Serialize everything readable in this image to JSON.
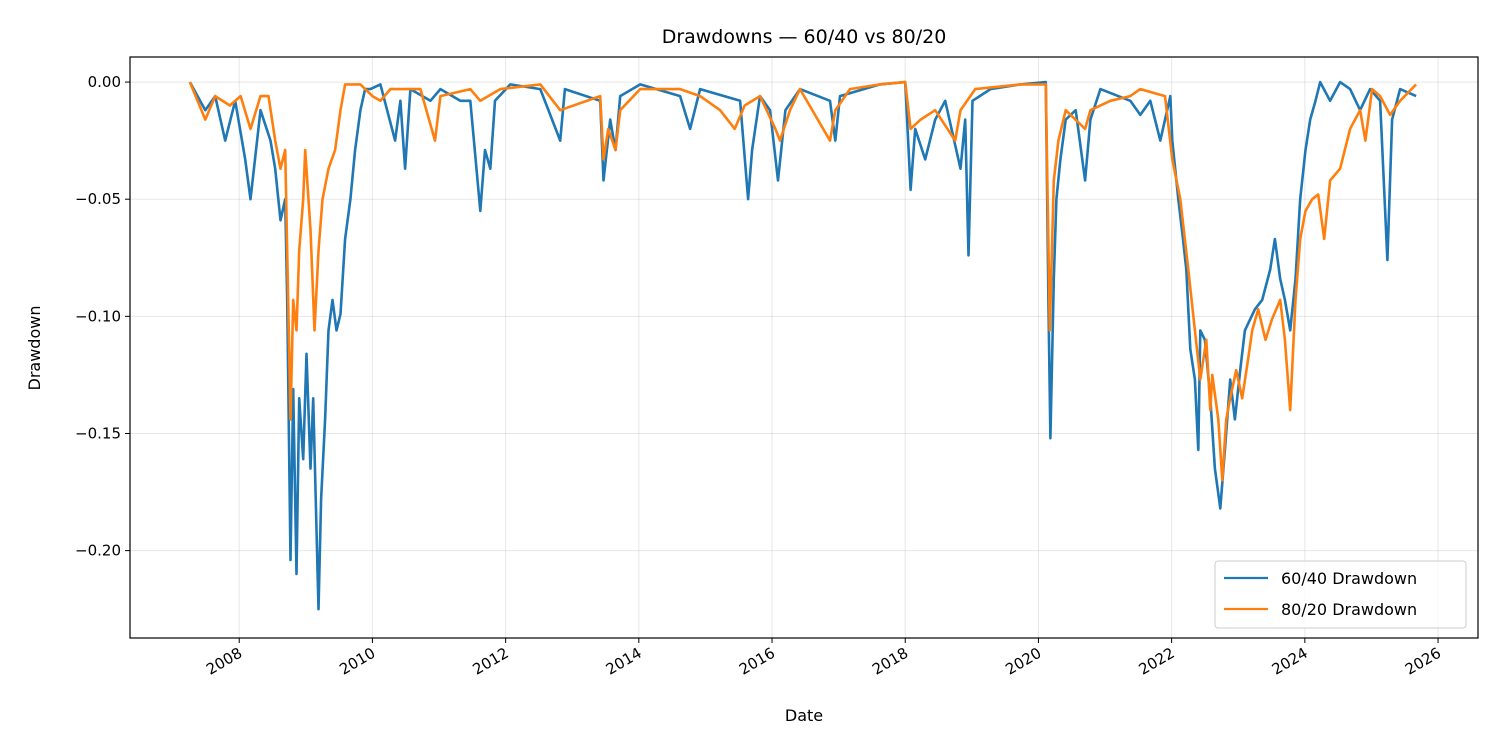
{
  "chart_data": {
    "type": "line",
    "title": "Drawdowns — 60/40 vs 80/20",
    "xlabel": "Date",
    "ylabel": "Drawdown",
    "xlim": [
      2006.36,
      2026.6
    ],
    "ylim": [
      -0.2373,
      0.0107
    ],
    "x_ticks": [
      2008,
      2010,
      2012,
      2014,
      2016,
      2018,
      2020,
      2022,
      2024,
      2026
    ],
    "x_tick_labels": [
      "2008",
      "2010",
      "2012",
      "2014",
      "2016",
      "2018",
      "2020",
      "2022",
      "2024",
      "2026"
    ],
    "y_ticks": [
      0,
      -0.05,
      -0.1,
      -0.15,
      -0.2
    ],
    "y_tick_labels": [
      "0.00",
      "−0.05",
      "−0.10",
      "−0.15",
      "−0.20"
    ],
    "grid": true,
    "legend_position": "lower-right",
    "series": [
      {
        "name": "60/40 Drawdown",
        "color": "#1f77b4",
        "points": [
          [
            2007.26,
            0
          ],
          [
            2007.49,
            -0.012
          ],
          [
            2007.64,
            -0.006
          ],
          [
            2007.79,
            -0.025
          ],
          [
            2007.94,
            -0.008
          ],
          [
            2008.09,
            -0.033
          ],
          [
            2008.17,
            -0.05
          ],
          [
            2008.32,
            -0.012
          ],
          [
            2008.47,
            -0.025
          ],
          [
            2008.54,
            -0.037
          ],
          [
            2008.62,
            -0.059
          ],
          [
            2008.69,
            -0.05
          ],
          [
            2008.72,
            -0.093
          ],
          [
            2008.77,
            -0.204
          ],
          [
            2008.81,
            -0.131
          ],
          [
            2008.86,
            -0.21
          ],
          [
            2008.9,
            -0.135
          ],
          [
            2008.96,
            -0.161
          ],
          [
            2009.01,
            -0.116
          ],
          [
            2009.07,
            -0.165
          ],
          [
            2009.11,
            -0.135
          ],
          [
            2009.16,
            -0.191
          ],
          [
            2009.19,
            -0.225
          ],
          [
            2009.23,
            -0.178
          ],
          [
            2009.29,
            -0.144
          ],
          [
            2009.34,
            -0.106
          ],
          [
            2009.4,
            -0.093
          ],
          [
            2009.46,
            -0.106
          ],
          [
            2009.52,
            -0.099
          ],
          [
            2009.59,
            -0.067
          ],
          [
            2009.67,
            -0.05
          ],
          [
            2009.74,
            -0.029
          ],
          [
            2009.82,
            -0.012
          ],
          [
            2009.89,
            -0.003
          ],
          [
            2009.97,
            -0.003
          ],
          [
            2010.12,
            -0.001
          ],
          [
            2010.34,
            -0.025
          ],
          [
            2010.42,
            -0.008
          ],
          [
            2010.49,
            -0.037
          ],
          [
            2010.57,
            -0.003
          ],
          [
            2010.87,
            -0.008
          ],
          [
            2011.02,
            -0.003
          ],
          [
            2011.32,
            -0.008
          ],
          [
            2011.47,
            -0.008
          ],
          [
            2011.62,
            -0.055
          ],
          [
            2011.69,
            -0.029
          ],
          [
            2011.77,
            -0.037
          ],
          [
            2011.84,
            -0.008
          ],
          [
            2012.07,
            -0.001
          ],
          [
            2012.52,
            -0.003
          ],
          [
            2012.82,
            -0.025
          ],
          [
            2012.89,
            -0.003
          ],
          [
            2013.42,
            -0.008
          ],
          [
            2013.47,
            -0.042
          ],
          [
            2013.57,
            -0.016
          ],
          [
            2013.65,
            -0.029
          ],
          [
            2013.72,
            -0.006
          ],
          [
            2014.02,
            -0.001
          ],
          [
            2014.62,
            -0.006
          ],
          [
            2014.77,
            -0.02
          ],
          [
            2014.92,
            -0.003
          ],
          [
            2015.52,
            -0.008
          ],
          [
            2015.64,
            -0.05
          ],
          [
            2015.7,
            -0.029
          ],
          [
            2015.82,
            -0.006
          ],
          [
            2015.97,
            -0.012
          ],
          [
            2016.09,
            -0.042
          ],
          [
            2016.2,
            -0.012
          ],
          [
            2016.42,
            -0.003
          ],
          [
            2016.87,
            -0.008
          ],
          [
            2016.95,
            -0.025
          ],
          [
            2017.02,
            -0.006
          ],
          [
            2017.62,
            -0.001
          ],
          [
            2018.0,
            0
          ],
          [
            2018.08,
            -0.046
          ],
          [
            2018.15,
            -0.02
          ],
          [
            2018.3,
            -0.033
          ],
          [
            2018.45,
            -0.016
          ],
          [
            2018.6,
            -0.008
          ],
          [
            2018.83,
            -0.037
          ],
          [
            2018.9,
            -0.016
          ],
          [
            2018.95,
            -0.074
          ],
          [
            2019.01,
            -0.008
          ],
          [
            2019.28,
            -0.003
          ],
          [
            2019.73,
            -0.001
          ],
          [
            2020.11,
            0
          ],
          [
            2020.15,
            -0.093
          ],
          [
            2020.18,
            -0.152
          ],
          [
            2020.23,
            -0.084
          ],
          [
            2020.27,
            -0.05
          ],
          [
            2020.33,
            -0.033
          ],
          [
            2020.41,
            -0.016
          ],
          [
            2020.56,
            -0.012
          ],
          [
            2020.7,
            -0.042
          ],
          [
            2020.78,
            -0.016
          ],
          [
            2020.93,
            -0.003
          ],
          [
            2021.38,
            -0.008
          ],
          [
            2021.53,
            -0.014
          ],
          [
            2021.68,
            -0.008
          ],
          [
            2021.83,
            -0.025
          ],
          [
            2021.98,
            -0.006
          ],
          [
            2022.01,
            -0.025
          ],
          [
            2022.1,
            -0.05
          ],
          [
            2022.17,
            -0.067
          ],
          [
            2022.22,
            -0.08
          ],
          [
            2022.28,
            -0.114
          ],
          [
            2022.35,
            -0.127
          ],
          [
            2022.4,
            -0.157
          ],
          [
            2022.43,
            -0.106
          ],
          [
            2022.5,
            -0.11
          ],
          [
            2022.58,
            -0.135
          ],
          [
            2022.65,
            -0.165
          ],
          [
            2022.73,
            -0.182
          ],
          [
            2022.8,
            -0.157
          ],
          [
            2022.88,
            -0.127
          ],
          [
            2022.95,
            -0.144
          ],
          [
            2023.03,
            -0.123
          ],
          [
            2023.1,
            -0.106
          ],
          [
            2023.25,
            -0.097
          ],
          [
            2023.36,
            -0.093
          ],
          [
            2023.48,
            -0.08
          ],
          [
            2023.55,
            -0.067
          ],
          [
            2023.63,
            -0.084
          ],
          [
            2023.7,
            -0.093
          ],
          [
            2023.78,
            -0.106
          ],
          [
            2023.86,
            -0.084
          ],
          [
            2023.93,
            -0.05
          ],
          [
            2024.01,
            -0.029
          ],
          [
            2024.08,
            -0.016
          ],
          [
            2024.16,
            -0.008
          ],
          [
            2024.23,
            0
          ],
          [
            2024.38,
            -0.008
          ],
          [
            2024.53,
            0
          ],
          [
            2024.68,
            -0.003
          ],
          [
            2024.83,
            -0.012
          ],
          [
            2024.98,
            -0.003
          ],
          [
            2025.13,
            -0.008
          ],
          [
            2025.24,
            -0.076
          ],
          [
            2025.31,
            -0.016
          ],
          [
            2025.43,
            -0.003
          ],
          [
            2025.67,
            -0.006
          ]
        ]
      },
      {
        "name": "80/20 Drawdown",
        "color": "#ff7f0e",
        "points": [
          [
            2007.26,
            0
          ],
          [
            2007.49,
            -0.016
          ],
          [
            2007.64,
            -0.006
          ],
          [
            2007.86,
            -0.01
          ],
          [
            2008.02,
            -0.006
          ],
          [
            2008.17,
            -0.02
          ],
          [
            2008.32,
            -0.006
          ],
          [
            2008.44,
            -0.006
          ],
          [
            2008.54,
            -0.025
          ],
          [
            2008.62,
            -0.037
          ],
          [
            2008.69,
            -0.029
          ],
          [
            2008.77,
            -0.144
          ],
          [
            2008.81,
            -0.093
          ],
          [
            2008.86,
            -0.106
          ],
          [
            2008.9,
            -0.072
          ],
          [
            2008.96,
            -0.05
          ],
          [
            2008.99,
            -0.029
          ],
          [
            2009.07,
            -0.063
          ],
          [
            2009.13,
            -0.106
          ],
          [
            2009.19,
            -0.072
          ],
          [
            2009.25,
            -0.05
          ],
          [
            2009.34,
            -0.037
          ],
          [
            2009.44,
            -0.029
          ],
          [
            2009.52,
            -0.012
          ],
          [
            2009.59,
            -0.001
          ],
          [
            2009.82,
            -0.001
          ],
          [
            2010.0,
            -0.006
          ],
          [
            2010.12,
            -0.008
          ],
          [
            2010.27,
            -0.003
          ],
          [
            2010.72,
            -0.003
          ],
          [
            2010.94,
            -0.025
          ],
          [
            2011.02,
            -0.006
          ],
          [
            2011.47,
            -0.003
          ],
          [
            2011.62,
            -0.008
          ],
          [
            2011.92,
            -0.003
          ],
          [
            2012.52,
            -0.001
          ],
          [
            2012.82,
            -0.012
          ],
          [
            2013.42,
            -0.006
          ],
          [
            2013.47,
            -0.033
          ],
          [
            2013.54,
            -0.02
          ],
          [
            2013.65,
            -0.029
          ],
          [
            2013.72,
            -0.012
          ],
          [
            2014.02,
            -0.003
          ],
          [
            2014.62,
            -0.003
          ],
          [
            2014.92,
            -0.006
          ],
          [
            2015.22,
            -0.012
          ],
          [
            2015.44,
            -0.02
          ],
          [
            2015.59,
            -0.01
          ],
          [
            2015.82,
            -0.006
          ],
          [
            2016.05,
            -0.02
          ],
          [
            2016.12,
            -0.025
          ],
          [
            2016.27,
            -0.012
          ],
          [
            2016.42,
            -0.003
          ],
          [
            2016.87,
            -0.025
          ],
          [
            2016.95,
            -0.012
          ],
          [
            2017.17,
            -0.003
          ],
          [
            2017.62,
            -0.001
          ],
          [
            2018.0,
            0
          ],
          [
            2018.08,
            -0.02
          ],
          [
            2018.23,
            -0.016
          ],
          [
            2018.45,
            -0.012
          ],
          [
            2018.75,
            -0.025
          ],
          [
            2018.83,
            -0.012
          ],
          [
            2019.05,
            -0.003
          ],
          [
            2019.73,
            -0.001
          ],
          [
            2020.11,
            -0.001
          ],
          [
            2020.17,
            -0.106
          ],
          [
            2020.23,
            -0.042
          ],
          [
            2020.3,
            -0.025
          ],
          [
            2020.41,
            -0.012
          ],
          [
            2020.7,
            -0.02
          ],
          [
            2020.78,
            -0.012
          ],
          [
            2021.08,
            -0.008
          ],
          [
            2021.38,
            -0.006
          ],
          [
            2021.53,
            -0.003
          ],
          [
            2021.9,
            -0.006
          ],
          [
            2022.01,
            -0.033
          ],
          [
            2022.13,
            -0.05
          ],
          [
            2022.25,
            -0.08
          ],
          [
            2022.35,
            -0.106
          ],
          [
            2022.43,
            -0.127
          ],
          [
            2022.52,
            -0.11
          ],
          [
            2022.58,
            -0.14
          ],
          [
            2022.61,
            -0.125
          ],
          [
            2022.7,
            -0.144
          ],
          [
            2022.76,
            -0.17
          ],
          [
            2022.82,
            -0.144
          ],
          [
            2022.88,
            -0.135
          ],
          [
            2022.97,
            -0.123
          ],
          [
            2023.06,
            -0.135
          ],
          [
            2023.15,
            -0.118
          ],
          [
            2023.21,
            -0.106
          ],
          [
            2023.3,
            -0.097
          ],
          [
            2023.41,
            -0.11
          ],
          [
            2023.51,
            -0.101
          ],
          [
            2023.63,
            -0.093
          ],
          [
            2023.7,
            -0.11
          ],
          [
            2023.78,
            -0.14
          ],
          [
            2023.86,
            -0.093
          ],
          [
            2023.93,
            -0.067
          ],
          [
            2024.01,
            -0.055
          ],
          [
            2024.11,
            -0.05
          ],
          [
            2024.2,
            -0.048
          ],
          [
            2024.29,
            -0.067
          ],
          [
            2024.38,
            -0.042
          ],
          [
            2024.53,
            -0.037
          ],
          [
            2024.68,
            -0.02
          ],
          [
            2024.83,
            -0.012
          ],
          [
            2024.91,
            -0.025
          ],
          [
            2025.01,
            -0.003
          ],
          [
            2025.13,
            -0.006
          ],
          [
            2025.28,
            -0.014
          ],
          [
            2025.43,
            -0.008
          ],
          [
            2025.67,
            -0.001
          ]
        ]
      }
    ]
  }
}
